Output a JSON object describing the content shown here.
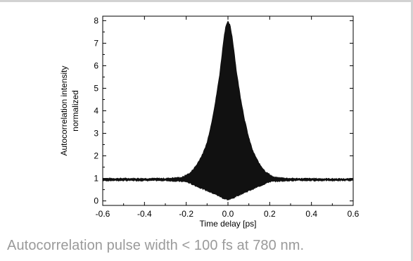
{
  "caption": "Autocorrelation pulse width < 100 fs at 780 nm.",
  "chart_data": {
    "type": "area",
    "title": "",
    "xlabel": "Time delay [ps]",
    "ylabel_lines": [
      "Autocorrelation intensity",
      "normalized"
    ],
    "xlim": [
      -0.6,
      0.6
    ],
    "ylim": [
      -0.2,
      8.2
    ],
    "x_ticks": [
      -0.6,
      -0.4,
      -0.2,
      0.0,
      0.2,
      0.4,
      0.6
    ],
    "x_tick_labels": [
      "-0.6",
      "-0.4",
      "-0.2",
      "0.0",
      "0.2",
      "0.4",
      "0.6"
    ],
    "y_ticks": [
      0,
      1,
      2,
      3,
      4,
      5,
      6,
      7,
      8
    ],
    "y_tick_labels": [
      "0",
      "1",
      "2",
      "3",
      "4",
      "5",
      "6",
      "7",
      "8"
    ],
    "grid": false,
    "legend": "none",
    "fill_color": "#111111",
    "upper_envelope": {
      "x": [
        -0.6,
        -0.3,
        -0.22,
        -0.18,
        -0.15,
        -0.12,
        -0.1,
        -0.08,
        -0.06,
        -0.04,
        -0.03,
        -0.02,
        -0.01,
        0.0,
        0.01,
        0.02,
        0.03,
        0.04,
        0.06,
        0.08,
        0.1,
        0.12,
        0.15,
        0.18,
        0.22,
        0.3,
        0.6
      ],
      "y": [
        1.0,
        1.0,
        1.05,
        1.25,
        1.6,
        2.1,
        2.6,
        3.4,
        4.4,
        5.6,
        6.4,
        7.2,
        7.8,
        7.95,
        7.8,
        7.3,
        6.6,
        5.8,
        4.6,
        3.6,
        2.8,
        2.2,
        1.65,
        1.3,
        1.05,
        1.0,
        0.98
      ]
    },
    "lower_envelope": {
      "x": [
        -0.6,
        -0.3,
        -0.2,
        -0.15,
        -0.1,
        -0.05,
        -0.02,
        0.0,
        0.02,
        0.05,
        0.1,
        0.15,
        0.2,
        0.3,
        0.6
      ],
      "y": [
        0.9,
        0.9,
        0.85,
        0.65,
        0.45,
        0.25,
        0.1,
        0.05,
        0.1,
        0.25,
        0.45,
        0.65,
        0.85,
        0.9,
        0.9
      ]
    }
  }
}
